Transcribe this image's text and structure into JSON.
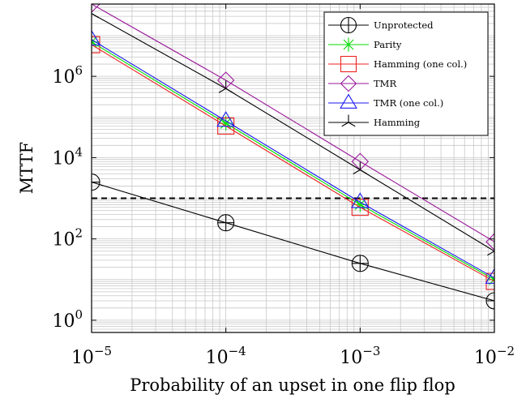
{
  "chart_data": {
    "type": "line",
    "xlabel": "Probability of an upset in one flip flop",
    "ylabel": "MTTF",
    "x_scale": "log",
    "y_scale": "log",
    "xlim": [
      1e-05,
      0.01
    ],
    "ylim": [
      0.5,
      60000000
    ],
    "grid": true,
    "legend_position": "top-right",
    "x_ticks": [
      {
        "value": 1e-05,
        "base": "10",
        "exp": "−5"
      },
      {
        "value": 0.0001,
        "base": "10",
        "exp": "−4"
      },
      {
        "value": 0.001,
        "base": "10",
        "exp": "−3"
      },
      {
        "value": 0.01,
        "base": "10",
        "exp": "−2"
      }
    ],
    "y_ticks": [
      {
        "value": 1,
        "base": "10",
        "exp": "0"
      },
      {
        "value": 100,
        "base": "10",
        "exp": "2"
      },
      {
        "value": 10000,
        "base": "10",
        "exp": "4"
      },
      {
        "value": 1000000,
        "base": "10",
        "exp": "6"
      }
    ],
    "reference_line": {
      "y": 1000,
      "style": "dashed",
      "color": "#000000"
    },
    "x": [
      1e-05,
      0.0001,
      0.001,
      0.01
    ],
    "series": [
      {
        "name": "Unprotected",
        "values": [
          2500,
          250,
          25,
          3
        ],
        "color": "#000000",
        "marker": "circle-plus"
      },
      {
        "name": "Parity",
        "values": [
          7000000,
          70000,
          700,
          10
        ],
        "color": "#00dd00",
        "marker": "asterisk"
      },
      {
        "name": "Hamming (one col.)",
        "values": [
          6000000,
          60000,
          600,
          9
        ],
        "color": "#ee2222",
        "marker": "square"
      },
      {
        "name": "TMR",
        "values": [
          60000000,
          800000,
          8000,
          85
        ],
        "color": "#9a1a9a",
        "marker": "diamond"
      },
      {
        "name": "TMR (one col.)",
        "values": [
          8000000,
          80000,
          800,
          11
        ],
        "color": "#1a1aee",
        "marker": "triangle"
      },
      {
        "name": "Hamming",
        "values": [
          35000000,
          500000,
          5000,
          50
        ],
        "color": "#000000",
        "marker": "tri-star"
      }
    ]
  }
}
